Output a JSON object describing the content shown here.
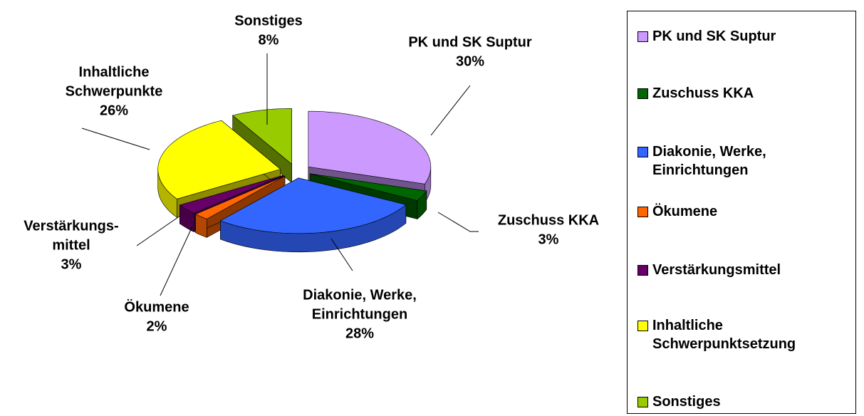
{
  "chart_data": {
    "type": "pie3d",
    "categories": [
      "PK und SK Suptur",
      "Zuschuss KKA",
      "Diakonie, Werke, Einrichtungen",
      "Ökumene",
      "Verstärkungsmittel",
      "Inhaltliche Schwerpunktsetzung",
      "Sonstiges"
    ],
    "data_labels": [
      [
        "PK und SK Suptur"
      ],
      [
        "Zuschuss KKA"
      ],
      [
        "Diakonie, Werke,",
        "Einrichtungen"
      ],
      [
        "Ökumene"
      ],
      [
        "Verstärkungs-",
        "mittel"
      ],
      [
        "Inhaltliche",
        "Schwerpunkte"
      ],
      [
        "Sonstiges"
      ]
    ],
    "values": [
      30,
      3,
      28,
      2,
      3,
      26,
      8
    ],
    "value_labels": [
      "30%",
      "3%",
      "28%",
      "2%",
      "3%",
      "26%",
      "8%"
    ],
    "colors": [
      "#cc99ff",
      "#006600",
      "#3366ff",
      "#ff6600",
      "#660066",
      "#ffff00",
      "#99cc00"
    ],
    "legend": "right"
  }
}
